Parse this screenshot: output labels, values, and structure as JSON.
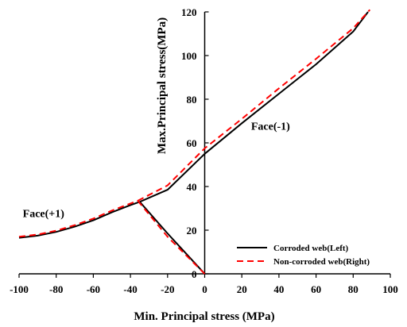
{
  "chart_data": {
    "type": "line",
    "xlabel": "Min. Principal stress (MPa)",
    "ylabel": "Max.Principal stress(MPa)",
    "xlim": [
      -100,
      100
    ],
    "ylim": [
      0,
      120
    ],
    "x_ticks": [
      -100,
      -80,
      -60,
      -40,
      -20,
      0,
      20,
      40,
      60,
      80,
      100
    ],
    "y_ticks": [
      0,
      20,
      40,
      60,
      80,
      100,
      120
    ],
    "grid": false,
    "legend_position": "bottom-right",
    "annotations": [
      {
        "text": "Face(-1)",
        "x": 25,
        "y": 66
      },
      {
        "text": "Face(+1)",
        "x": -98,
        "y": 26
      }
    ],
    "series": [
      {
        "name": "Corroded web(Left)",
        "color": "#000000",
        "dash": "solid",
        "segments": [
          [
            [
              -100,
              16.5
            ],
            [
              -90,
              17.5
            ],
            [
              -80,
              19.2
            ],
            [
              -70,
              21.6
            ],
            [
              -60,
              24.5
            ],
            [
              -50,
              28.2
            ],
            [
              -40,
              31.5
            ],
            [
              -35,
              33
            ]
          ],
          [
            [
              -35,
              33
            ],
            [
              -20,
              38.5
            ],
            [
              0,
              55
            ],
            [
              20,
              69
            ],
            [
              40,
              82.5
            ],
            [
              60,
              96
            ],
            [
              80,
              111
            ],
            [
              88,
              120
            ]
          ],
          [
            [
              -35,
              33
            ],
            [
              -20,
              18.5
            ],
            [
              0,
              0
            ]
          ]
        ]
      },
      {
        "name": "Non-corroded web(Right)",
        "color": "#ff0000",
        "dash": "dashed",
        "segments": [
          [
            [
              -100,
              17
            ],
            [
              -90,
              18
            ],
            [
              -80,
              19.8
            ],
            [
              -70,
              22.3
            ],
            [
              -60,
              25.3
            ],
            [
              -50,
              29
            ],
            [
              -40,
              32.2
            ],
            [
              -36,
              33.5
            ]
          ],
          [
            [
              -36,
              33.5
            ],
            [
              -20,
              40.5
            ],
            [
              0,
              57.5
            ],
            [
              20,
              71
            ],
            [
              40,
              85
            ],
            [
              60,
              98.5
            ],
            [
              80,
              112.5
            ],
            [
              89,
              121
            ]
          ],
          [
            [
              -36,
              33.5
            ],
            [
              -20,
              17
            ],
            [
              0,
              0
            ]
          ]
        ]
      }
    ]
  }
}
